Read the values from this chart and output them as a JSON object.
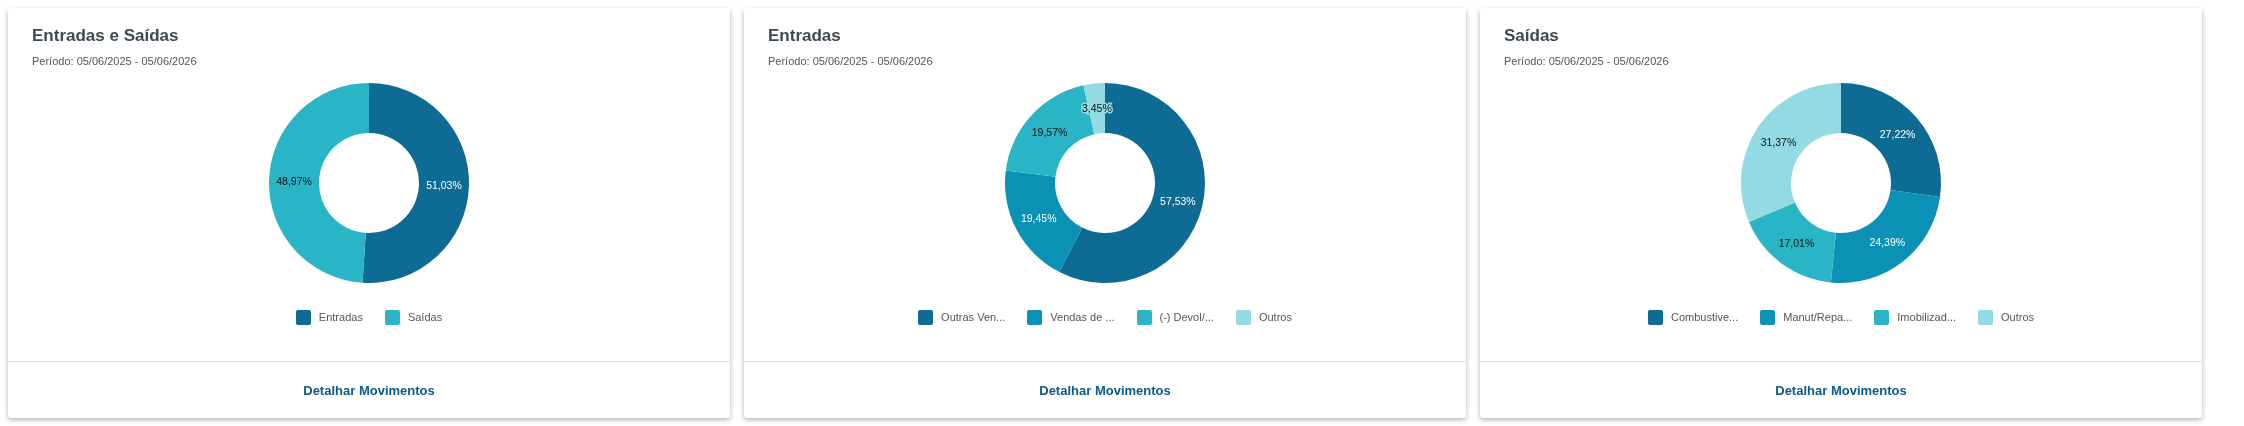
{
  "chart_data": [
    {
      "type": "donut",
      "title": "Entradas e Saídas",
      "subtitle": "Período: 05/06/2025 - 05/06/2026",
      "categories": [
        "Entradas",
        "Saídas"
      ],
      "values": [
        51.03,
        48.97
      ],
      "colors": [
        "#0e6b94",
        "#29b5c5"
      ],
      "value_labels": [
        "51,03%",
        "48,97%"
      ],
      "legend": "bottom",
      "annotations": [
        "Detalhar Movimentos"
      ]
    },
    {
      "type": "donut",
      "title": "Entradas",
      "subtitle": "Período: 05/06/2025 - 05/06/2026",
      "categories": [
        "Outras Ven...",
        "Vendas de ...",
        "(-) Devol/...",
        "Outros"
      ],
      "values": [
        57.53,
        19.45,
        19.57,
        3.45
      ],
      "colors": [
        "#0e6b94",
        "#0c91b6",
        "#29b5c5",
        "#94dae3"
      ],
      "value_labels": [
        "57,53%",
        "19,45%",
        "19,57%",
        "3,45%"
      ],
      "legend": "bottom",
      "annotations": [
        "Detalhar Movimentos"
      ]
    },
    {
      "type": "donut",
      "title": "Saídas",
      "subtitle": "Período: 05/06/2025 - 05/06/2026",
      "categories": [
        "Combustive...",
        "Manut/Repa...",
        "Imobilizad...",
        "Outros"
      ],
      "values": [
        27.22,
        24.39,
        17.01,
        31.37
      ],
      "colors": [
        "#0e6b94",
        "#0c91b6",
        "#29b5c5",
        "#94dae3"
      ],
      "value_labels": [
        "27,22%",
        "24,39%",
        "17,01%",
        "31,37%"
      ],
      "legend": "bottom",
      "annotations": [
        "Detalhar Movimentos"
      ]
    }
  ]
}
